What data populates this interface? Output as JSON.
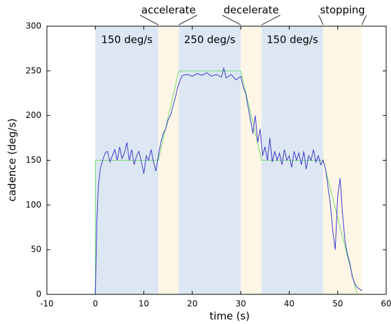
{
  "chart_data": {
    "type": "line",
    "xlabel": "time (s)",
    "ylabel": "cadence (deg/s)",
    "xlim": [
      -10,
      60
    ],
    "xticks": [
      -10,
      0,
      10,
      20,
      30,
      40,
      50,
      60
    ],
    "ylim": [
      0,
      300
    ],
    "yticks": [
      0,
      50,
      100,
      150,
      200,
      250,
      300
    ],
    "regions": [
      {
        "start": 0,
        "end": 13,
        "color": "#dde7f3",
        "label": "150 deg/s",
        "label_position": "inside"
      },
      {
        "start": 13,
        "end": 17.2,
        "color": "#fdf6e7",
        "label": "accelerate",
        "label_position": "above"
      },
      {
        "start": 17.2,
        "end": 30,
        "color": "#dde7f3",
        "label": "250 deg/s",
        "label_position": "inside"
      },
      {
        "start": 30,
        "end": 34.3,
        "color": "#fdf6e7",
        "label": "decelerate",
        "label_position": "above"
      },
      {
        "start": 34.3,
        "end": 47,
        "color": "#dde7f3",
        "label": "150 deg/s",
        "label_position": "inside"
      },
      {
        "start": 47,
        "end": 55,
        "color": "#fdf6e7",
        "label": "stopping",
        "label_position": "above"
      }
    ],
    "series": [
      {
        "color": "#3a3ac8",
        "x": [
          0,
          0.3,
          0.6,
          1,
          1.5,
          2,
          2.5,
          3,
          3.5,
          4,
          4.5,
          5,
          5.5,
          6,
          6.5,
          7,
          7.5,
          8,
          8.5,
          9,
          9.5,
          10,
          10.5,
          11,
          11.5,
          12,
          12.5,
          13,
          13.5,
          14,
          14.5,
          15,
          15.5,
          16,
          16.5,
          17,
          17.5,
          18,
          19,
          20,
          21,
          22,
          23,
          24,
          25,
          26,
          26.5,
          27,
          28,
          29,
          30,
          30.5,
          31,
          31.5,
          32,
          32.5,
          33,
          33.5,
          34,
          34.5,
          35,
          35.5,
          36,
          36.5,
          37,
          37.5,
          38,
          38.5,
          39,
          39.5,
          40,
          40.5,
          41,
          41.5,
          42,
          42.5,
          43,
          43.5,
          44,
          44.5,
          45,
          45.5,
          46,
          46.5,
          47,
          47.5,
          48,
          48.5,
          49,
          49.5,
          50,
          50.5,
          51,
          51.5,
          52,
          52.5,
          53,
          53.5,
          54,
          54.5,
          55
        ],
        "values": [
          0,
          80,
          120,
          140,
          150,
          158,
          160,
          148,
          155,
          162,
          150,
          165,
          152,
          158,
          170,
          150,
          162,
          145,
          155,
          160,
          148,
          135,
          155,
          150,
          162,
          148,
          138,
          155,
          170,
          180,
          185,
          195,
          200,
          210,
          220,
          232,
          240,
          245,
          246,
          244,
          247,
          245,
          248,
          244,
          246,
          243,
          253,
          242,
          246,
          240,
          244,
          232,
          225,
          210,
          195,
          180,
          200,
          170,
          185,
          155,
          165,
          150,
          175,
          148,
          160,
          150,
          158,
          145,
          162,
          150,
          155,
          142,
          160,
          150,
          158,
          145,
          160,
          140,
          155,
          150,
          162,
          148,
          155,
          145,
          150,
          140,
          120,
          100,
          70,
          50,
          110,
          130,
          90,
          60,
          45,
          35,
          20,
          12,
          8,
          6,
          4
        ]
      },
      {
        "color": "#6edc6e",
        "x": [
          0,
          0,
          13,
          17.2,
          30,
          34.3,
          47,
          54
        ],
        "values": [
          0,
          150,
          150,
          250,
          250,
          150,
          150,
          0
        ]
      }
    ]
  }
}
